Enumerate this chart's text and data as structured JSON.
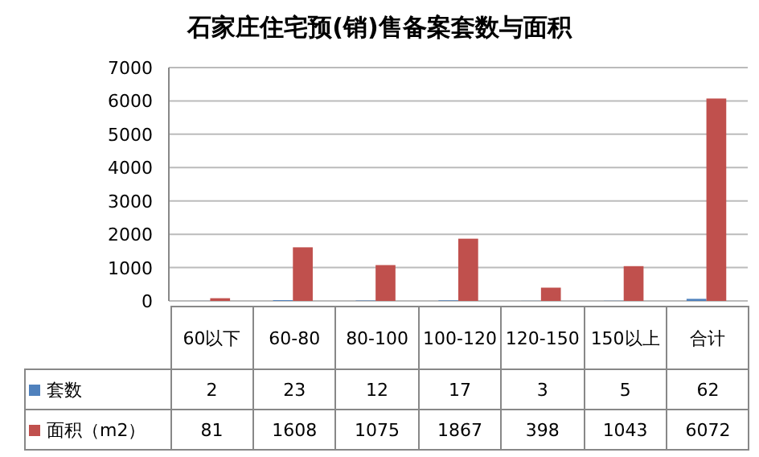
{
  "chart_data": {
    "type": "bar",
    "title": "石家庄住宅预(销)售备案套数与面积",
    "categories": [
      "60以下",
      "60-80",
      "80-100",
      "100-120",
      "120-150",
      "150以上",
      "合计"
    ],
    "series": [
      {
        "name": "套数",
        "color": "#4f81bd",
        "values": [
          2,
          23,
          12,
          17,
          3,
          5,
          62
        ]
      },
      {
        "name": "面积（m2）",
        "color": "#c0504d",
        "values": [
          81,
          1608,
          1075,
          1867,
          398,
          1043,
          6072
        ]
      }
    ],
    "ylim": [
      0,
      7000
    ],
    "yticks": [
      0,
      1000,
      2000,
      3000,
      4000,
      5000,
      6000,
      7000
    ],
    "grid": "y",
    "legend": "bottom",
    "data_labels": true
  }
}
